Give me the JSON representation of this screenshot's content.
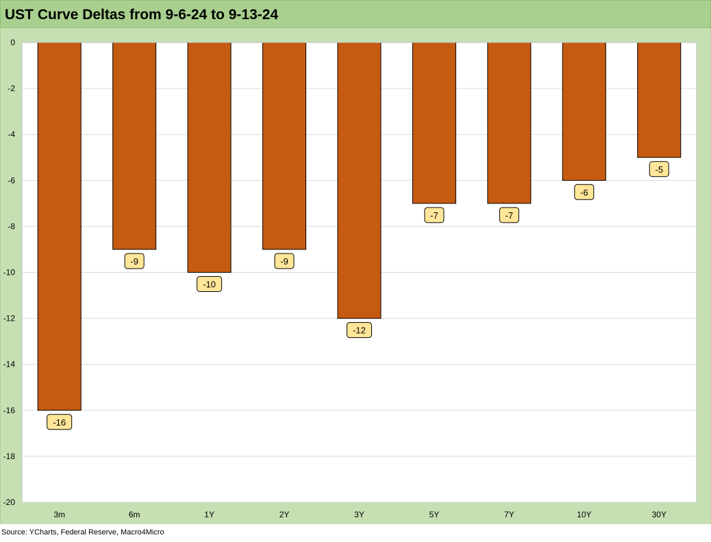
{
  "title": "UST Curve Deltas from 9-6-24 to 9-13-24",
  "source": "Source: YCharts, Federal Reserve, Macro4Micro",
  "colors": {
    "title_bar": "#a9d08e",
    "frame": "#c6e0b4",
    "bar_fill": "#c55a11",
    "bar_stroke": "#000000",
    "label_fill": "#ffe699",
    "gridline": "#d9d9d9"
  },
  "chart_data": {
    "type": "bar",
    "categories": [
      "3m",
      "6m",
      "1Y",
      "2Y",
      "3Y",
      "5Y",
      "7Y",
      "10Y",
      "30Y"
    ],
    "values": [
      -16,
      -9,
      -10,
      -9,
      -12,
      -7,
      -7,
      -6,
      -5
    ],
    "data_labels": [
      "-16",
      "-9",
      "-10",
      "-9",
      "-12",
      "-7",
      "-7",
      "-6",
      "-5"
    ],
    "ylim": [
      -20,
      0
    ],
    "yticks": [
      0,
      -2,
      -4,
      -6,
      -8,
      -10,
      -12,
      -14,
      -16,
      -18,
      -20
    ],
    "ytick_labels": [
      "0",
      "-2",
      "-4",
      "-6",
      "-8",
      "-10",
      "-12",
      "-14",
      "-16",
      "-18",
      "-20"
    ],
    "title": "UST Curve Deltas from 9-6-24 to 9-13-24",
    "xlabel": "",
    "ylabel": "",
    "grid": true,
    "legend": "none"
  }
}
